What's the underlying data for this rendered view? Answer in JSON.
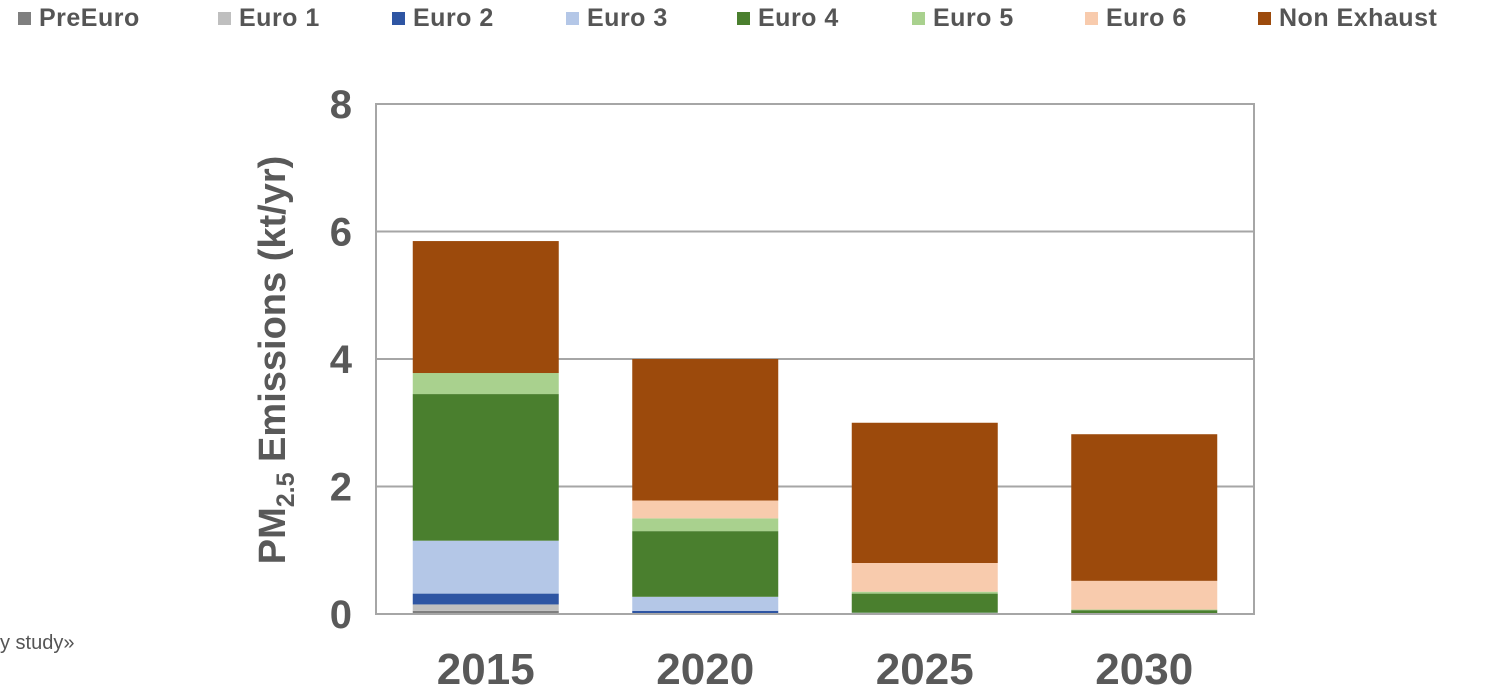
{
  "chart_data": {
    "type": "bar",
    "stacked": true,
    "title": "",
    "xlabel": "",
    "ylabel": {
      "prefix": "PM",
      "subscript": "2.5",
      "suffix": " Emissions (kt/yr)"
    },
    "ylim": [
      0,
      8
    ],
    "yticks": [
      "0",
      "2",
      "4",
      "6",
      "8"
    ],
    "grid": true,
    "legend_position": "top",
    "categories": [
      "2015",
      "2020",
      "2025",
      "2030"
    ],
    "series": [
      {
        "name": "PreEuro",
        "color": "#7f7f7f",
        "values": [
          0.05,
          0.0,
          0.0,
          0.0
        ]
      },
      {
        "name": "Euro 1",
        "color": "#bfbfbf",
        "values": [
          0.1,
          0.0,
          0.0,
          0.0
        ]
      },
      {
        "name": "Euro 2",
        "color": "#2e55a3",
        "values": [
          0.17,
          0.05,
          0.0,
          0.0
        ]
      },
      {
        "name": "Euro 3",
        "color": "#b4c7e7",
        "values": [
          0.83,
          0.22,
          0.02,
          0.0
        ]
      },
      {
        "name": "Euro 4",
        "color": "#4a7f2e",
        "values": [
          2.3,
          1.03,
          0.3,
          0.06
        ]
      },
      {
        "name": "Euro 5",
        "color": "#a9d18e",
        "values": [
          0.33,
          0.2,
          0.03,
          0.01
        ]
      },
      {
        "name": "Euro 6",
        "color": "#f8cbad",
        "values": [
          0.0,
          0.28,
          0.45,
          0.45
        ]
      },
      {
        "name": "Non Exhaust",
        "color": "#9c4a0c",
        "values": [
          2.07,
          2.22,
          2.2,
          2.3
        ]
      }
    ]
  },
  "caption_fragment": "y study»"
}
